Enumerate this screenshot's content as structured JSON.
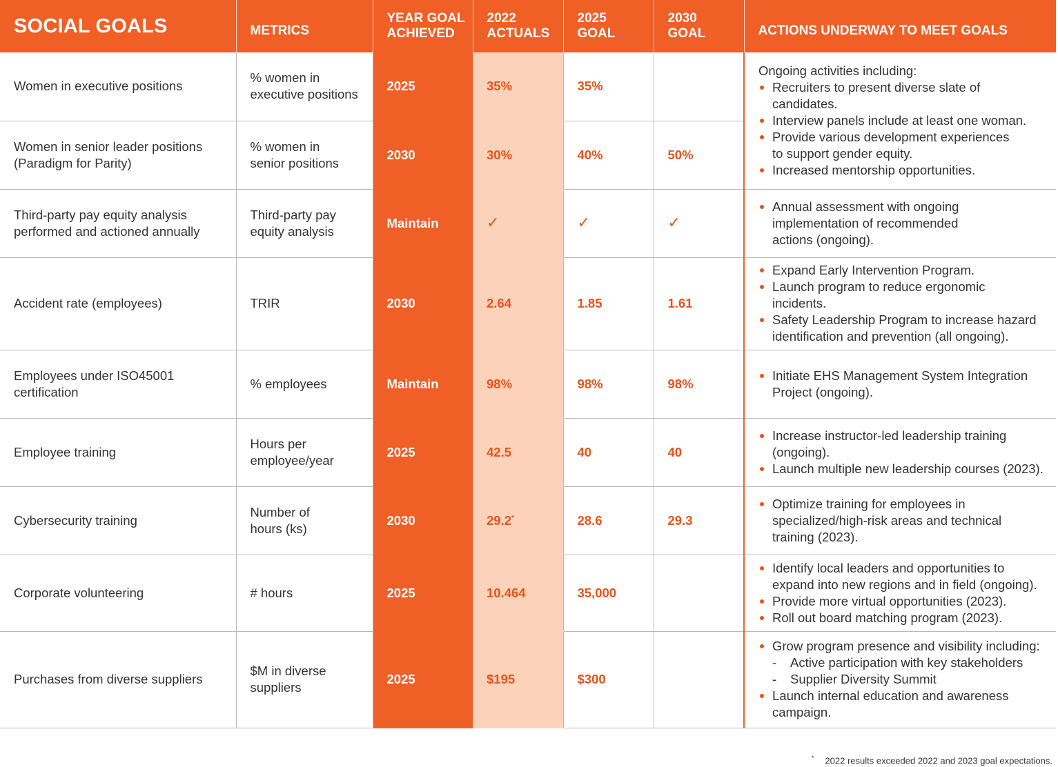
{
  "header": {
    "title": "SOCIAL GOALS",
    "metrics": "METRICS",
    "year_goal": [
      "YEAR GOAL",
      "ACHIEVED"
    ],
    "actuals": [
      "2022",
      "ACTUALS"
    ],
    "goal2025": [
      "2025",
      "GOAL"
    ],
    "goal2030": [
      "2030",
      "GOAL"
    ],
    "actions": "ACTIONS UNDERWAY TO MEET GOALS"
  },
  "rows": [
    {
      "goal": "Women in executive positions",
      "metric": [
        "% women in",
        "executive positions"
      ],
      "year": "2025",
      "actual": "35%",
      "g2025": "35%",
      "g2030": ""
    },
    {
      "goal": [
        "Women in senior leader positions",
        "(Paradigm for Parity)"
      ],
      "metric": [
        "% women in",
        "senior positions"
      ],
      "year": "2030",
      "actual": "30%",
      "g2025": "40%",
      "g2030": "50%"
    },
    {
      "goal": [
        "Third-party pay equity analysis",
        "performed and actioned annually"
      ],
      "metric": [
        "Third-party pay",
        "equity analysis"
      ],
      "year": "Maintain",
      "actual": "✓",
      "g2025": "✓",
      "g2030": "✓"
    },
    {
      "goal": "Accident rate (employees)",
      "metric": "TRIR",
      "year": "2030",
      "actual": "2.64",
      "g2025": "1.85",
      "g2030": "1.61"
    },
    {
      "goal": [
        "Employees under ISO45001",
        "certification"
      ],
      "metric": "% employees",
      "year": "Maintain",
      "actual": "98%",
      "g2025": "98%",
      "g2030": "98%"
    },
    {
      "goal": "Employee training",
      "metric": [
        "Hours per",
        "employee/year"
      ],
      "year": "2025",
      "actual": "42.5",
      "g2025": "40",
      "g2030": "40"
    },
    {
      "goal": "Cybersecurity training",
      "metric": [
        "Number of",
        "hours (ks)"
      ],
      "year": "2030",
      "actual": "29.2",
      "actual_mark": "*",
      "g2025": "28.6",
      "g2030": "29.3"
    },
    {
      "goal": "Corporate volunteering",
      "metric": "# hours",
      "year": "2025",
      "actual": "10.464",
      "g2025": "35,000",
      "g2030": ""
    },
    {
      "goal": "Purchases from diverse suppliers",
      "metric": [
        "$M in diverse",
        "suppliers"
      ],
      "year": "2025",
      "actual": "$195",
      "g2025": "$300",
      "g2030": ""
    }
  ],
  "actions": {
    "women": {
      "intro": "Ongoing activities including:",
      "items": [
        [
          "Recruiters to present diverse slate of",
          "candidates."
        ],
        [
          "Interview panels include at least one woman."
        ],
        [
          "Provide various development experiences",
          "to support gender equity."
        ],
        [
          "Increased mentorship opportunities."
        ]
      ]
    },
    "pay": [
      [
        "Annual assessment with ongoing",
        "implementation of recommended",
        "actions (ongoing)."
      ]
    ],
    "accident": [
      [
        "Expand Early Intervention Program."
      ],
      [
        "Launch program to reduce ergonomic",
        "incidents."
      ],
      [
        "Safety Leadership Program to increase hazard",
        "identification and prevention (all ongoing)."
      ]
    ],
    "iso": [
      [
        "Initiate EHS Management System Integration",
        "Project (ongoing)."
      ]
    ],
    "training": [
      [
        "Increase instructor-led leadership training",
        "(ongoing)."
      ],
      [
        "Launch multiple new leadership courses (2023)."
      ]
    ],
    "cyber": [
      [
        "Optimize training for employees in",
        "specialized/high-risk areas and technical",
        "training (2023)."
      ]
    ],
    "volunteer": [
      [
        "Identify local leaders and opportunities to",
        "expand into new regions and in field (ongoing)."
      ],
      [
        "Provide more virtual opportunities (2023)."
      ],
      [
        "Roll out board matching program (2023)."
      ]
    ],
    "suppliers": {
      "first": "Grow program presence and visibility including:",
      "sub": [
        "Active participation with key stakeholders",
        "Supplier Diversity Summit"
      ],
      "last": [
        "Launch internal education and awareness",
        "campaign."
      ]
    }
  },
  "footnote": {
    "mark": "*",
    "text": "2022 results exceeded 2022 and 2023 goal expectations."
  }
}
